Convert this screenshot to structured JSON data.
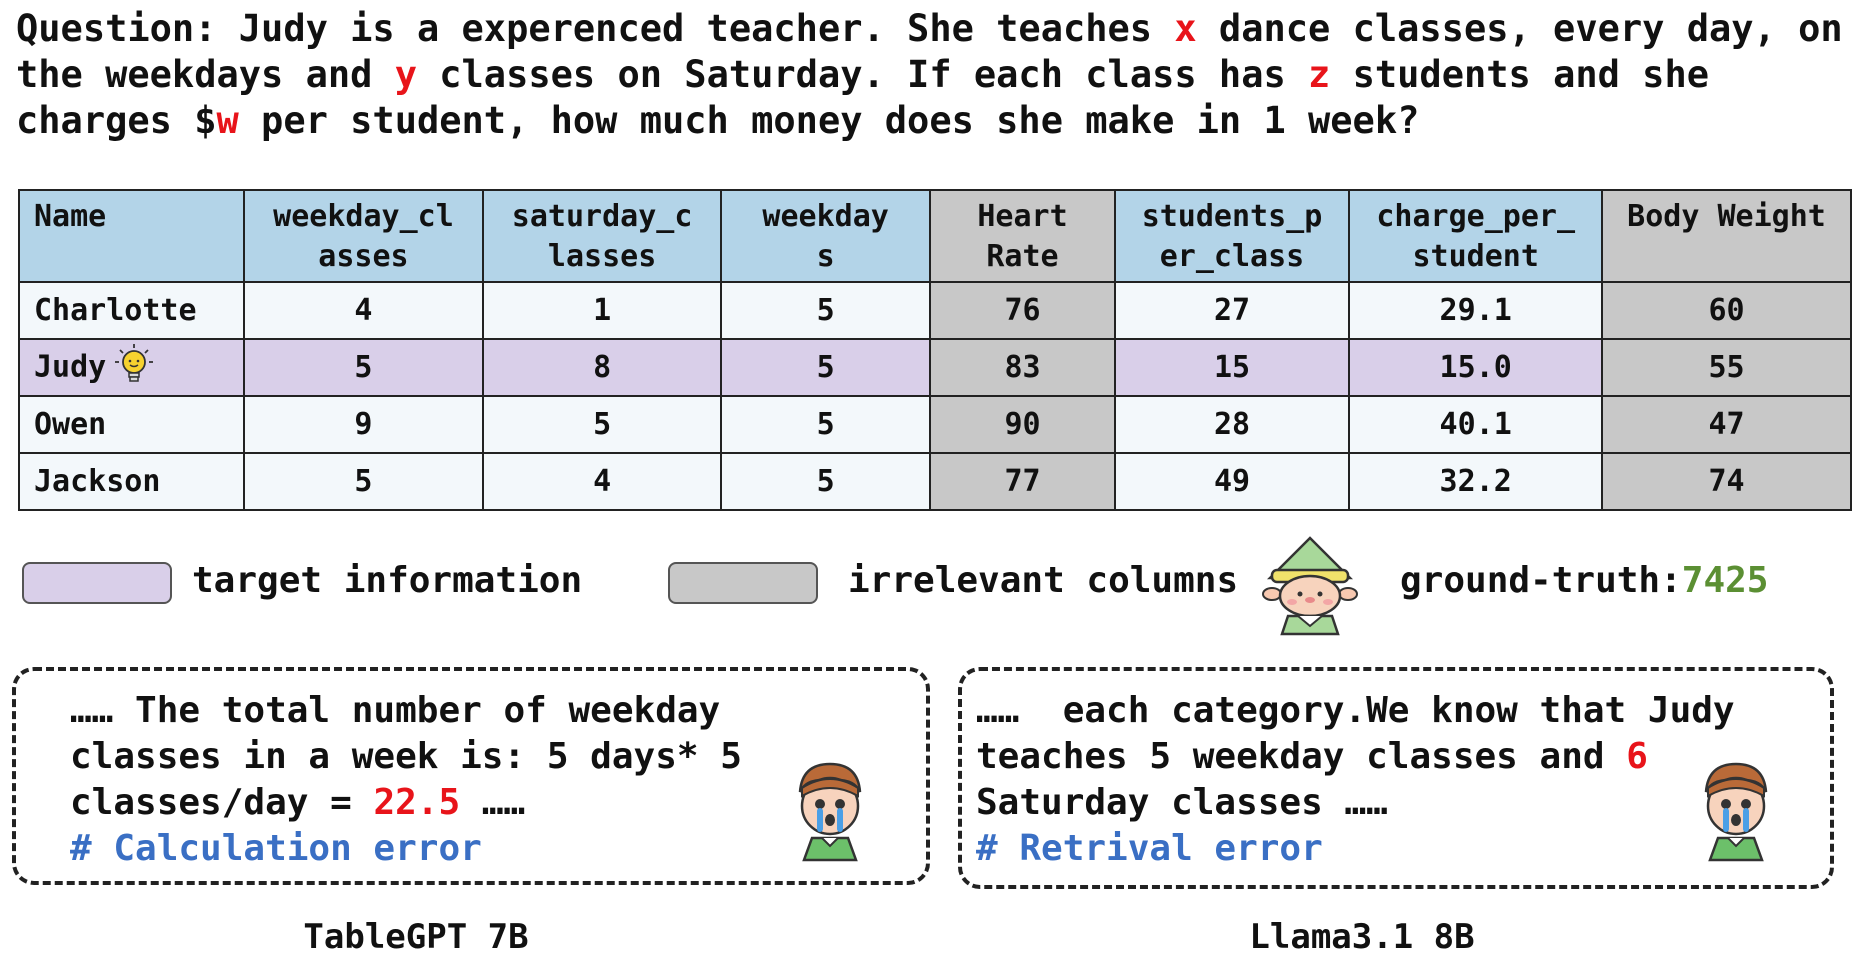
{
  "question": {
    "prefix": "Question: ",
    "part1": "Judy is a experenced teacher. She teaches ",
    "var_x": "x",
    "part2": " dance classes, every day, on the weekdays and ",
    "var_y": "y",
    "part3": " classes on Saturday. If each class has ",
    "var_z": "z",
    "part4": " students and she charges $",
    "var_w": "w",
    "part5": " per student, how much money does she make in 1 week?"
  },
  "table": {
    "headers": [
      "Name",
      "weekday_cl\nasses",
      "saturday_c\nlasses",
      "weekday\ns",
      "Heart\nRate",
      "students_p\ner_class",
      "charge_per_\nstudent",
      "Body Weight"
    ],
    "rows": [
      [
        "Charlotte",
        "4",
        "1",
        "5",
        "76",
        "27",
        "29.1",
        "60"
      ],
      [
        "Judy",
        "5",
        "8",
        "5",
        "83",
        "15",
        "15.0",
        "55"
      ],
      [
        "Owen",
        "9",
        "5",
        "5",
        "90",
        "28",
        "40.1",
        "47"
      ],
      [
        "Jackson",
        "5",
        "4",
        "5",
        "77",
        "49",
        "32.2",
        "74"
      ]
    ]
  },
  "legend": {
    "target_label": "target information",
    "irrelevant_label": "irrelevant columns",
    "ground_truth_label": "ground-truth:",
    "ground_truth_value": "7425"
  },
  "responses": [
    {
      "model": "TableGPT 7B",
      "line1": "…… The total number of weekday",
      "line2": "classes in a week is: 5 days* 5",
      "line3_pre": "classes/day = ",
      "line3_err": "22.5",
      "line3_post": " ……",
      "comment": "# Calculation error"
    },
    {
      "model": "Llama3.1 8B",
      "line1": "……  each category.We know that Judy",
      "line2_pre": "teaches 5 weekday classes and ",
      "line2_err": "6",
      "line3": "Saturday classes ……",
      "comment": "# Retrival error"
    }
  ],
  "colors": {
    "header_blue": "#b3d4e8",
    "irrelevant_gray": "#c8c8c8",
    "target_purple": "#d9cfe9",
    "error_red": "#e8141a",
    "comment_blue": "#3a6fc4",
    "ground_truth_green": "#5b8f33"
  }
}
